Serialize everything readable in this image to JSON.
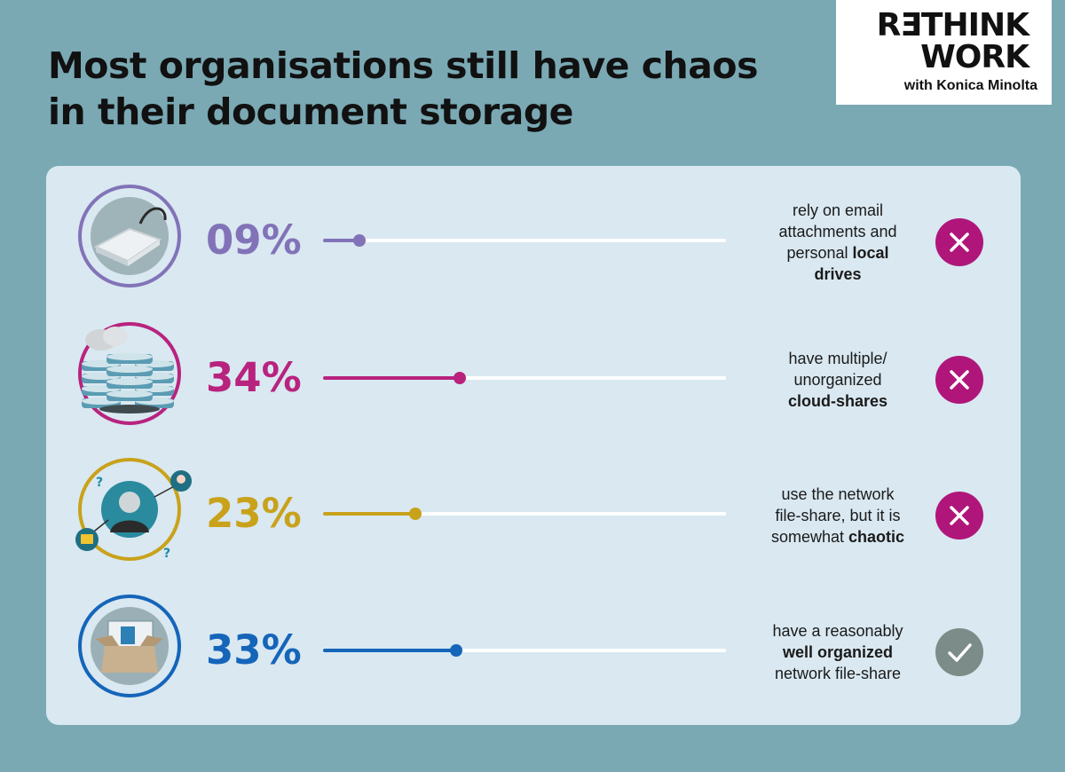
{
  "title": {
    "line1": "Most organisations still have chaos",
    "line2": "in their document storage"
  },
  "logo": {
    "line1": "RƎTHINK",
    "line2": "WORK",
    "line3": "with Konica Minolta"
  },
  "colors": {
    "background": "#7aa9b4",
    "panel": "#d9e8f1",
    "bad": "#b0167a",
    "good": "#7c8c88"
  },
  "chart_data": {
    "type": "bar",
    "title": "Most organisations still have chaos in their document storage",
    "categories": [
      "rely on email attachments and personal local drives",
      "have multiple/ unorganized cloud-shares",
      "use the network file-share, but it is somewhat chaotic",
      "have a reasonably well organized network file-share"
    ],
    "values": [
      9,
      34,
      23,
      33
    ],
    "labels": [
      "09%",
      "34%",
      "23%",
      "33%"
    ],
    "ylim": [
      0,
      100
    ],
    "rows": [
      {
        "pct_label": "09%",
        "value": 9,
        "color": "#8273b8",
        "icon": "hard-drive-icon",
        "status": "bad",
        "desc": [
          [
            {
              "t": "rely on email"
            }
          ],
          [
            {
              "t": "attachments and"
            }
          ],
          [
            {
              "t": "personal "
            },
            {
              "t": "local",
              "b": true
            }
          ],
          [
            {
              "t": "drives",
              "b": true
            }
          ]
        ]
      },
      {
        "pct_label": "34%",
        "value": 34,
        "color": "#b8237e",
        "icon": "cloud-server-icon",
        "status": "bad",
        "desc": [
          [
            {
              "t": "have multiple/"
            }
          ],
          [
            {
              "t": "unorganized"
            }
          ],
          [
            {
              "t": "cloud-shares",
              "b": true
            }
          ]
        ]
      },
      {
        "pct_label": "23%",
        "value": 23,
        "color": "#c9a21b",
        "icon": "network-user-icon",
        "status": "bad",
        "desc": [
          [
            {
              "t": "use the network"
            }
          ],
          [
            {
              "t": "file-share, but it is"
            }
          ],
          [
            {
              "t": "somewhat "
            },
            {
              "t": "chaotic",
              "b": true
            }
          ]
        ]
      },
      {
        "pct_label": "33%",
        "value": 33,
        "color": "#1565b9",
        "icon": "file-box-icon",
        "status": "good",
        "desc": [
          [
            {
              "t": "have a reasonably"
            }
          ],
          [
            {
              "t": "well organized",
              "b": true
            }
          ],
          [
            {
              "t": "network file-share"
            }
          ]
        ]
      }
    ]
  }
}
